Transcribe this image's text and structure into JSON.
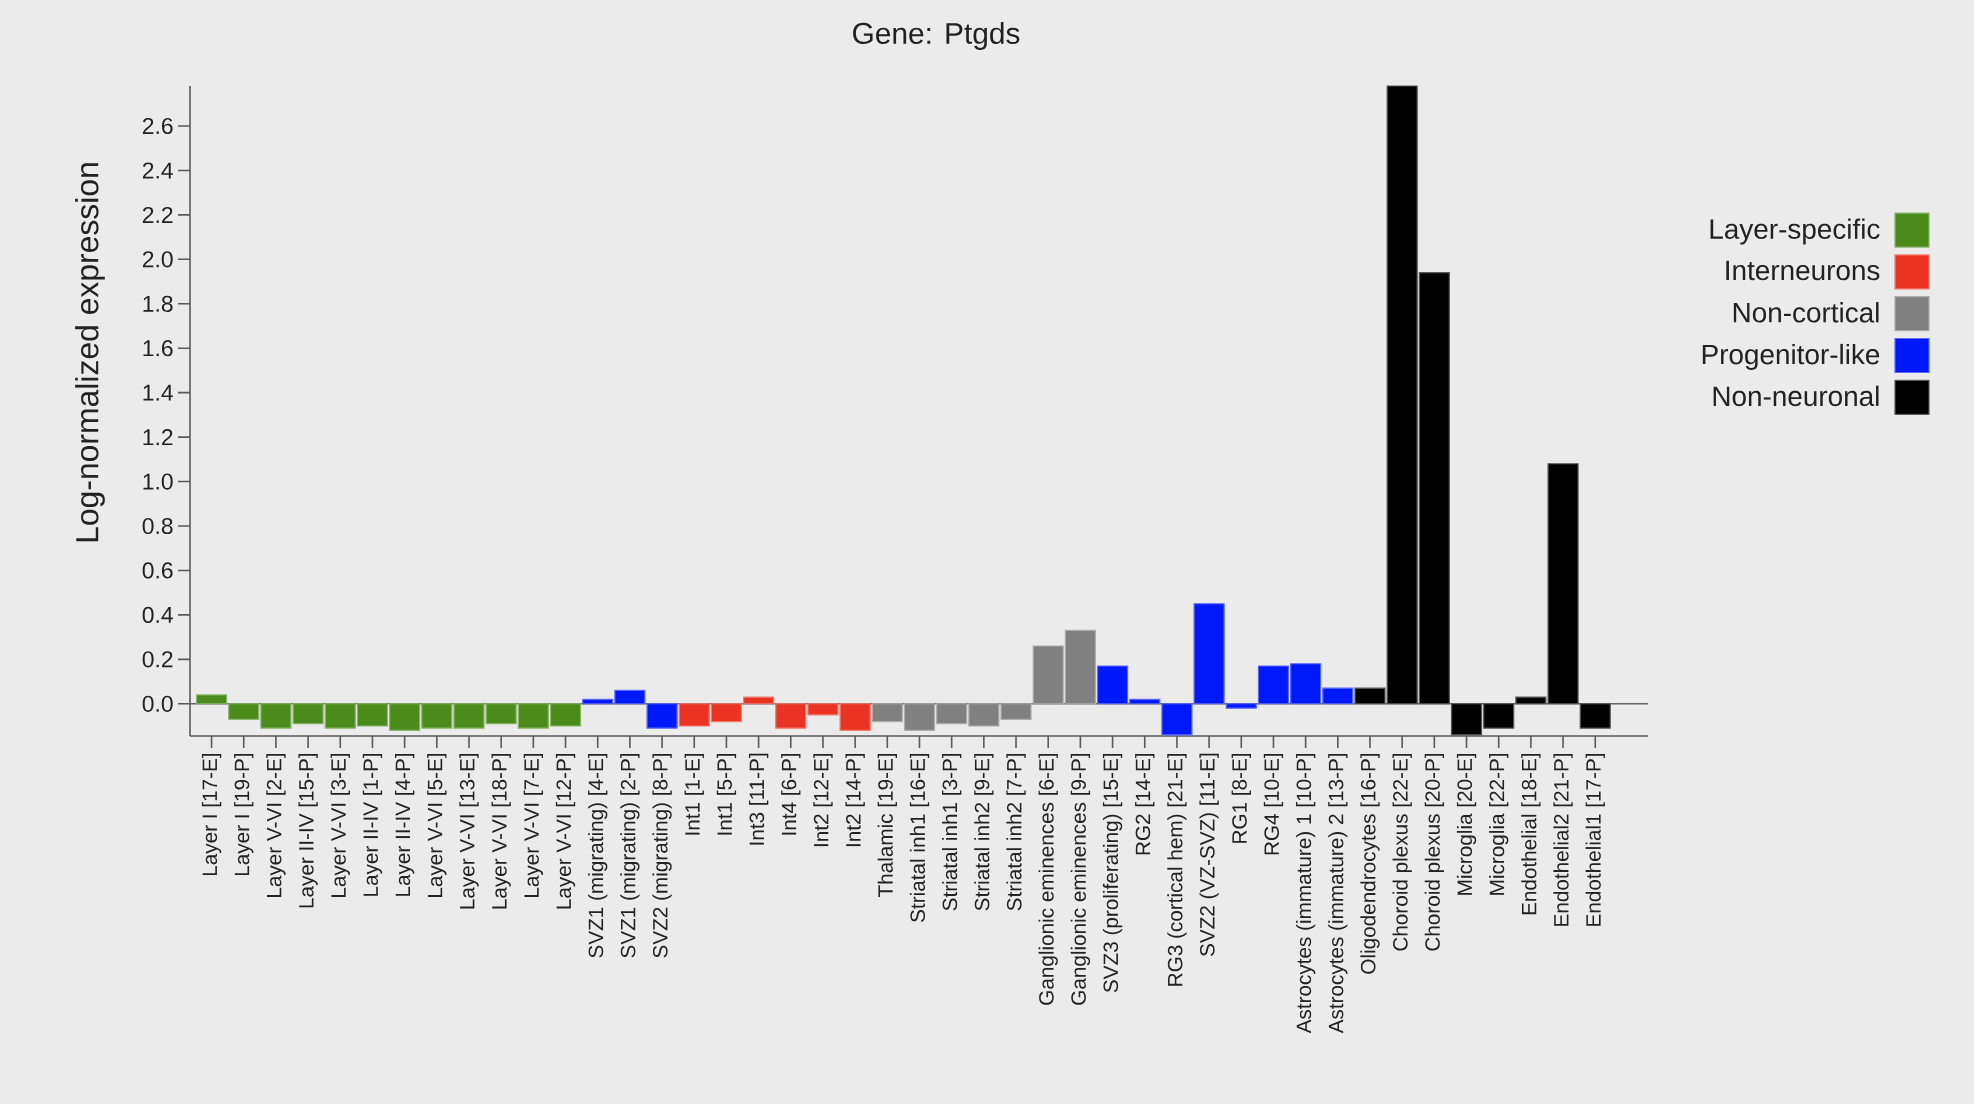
{
  "chart_data": {
    "type": "bar",
    "title": "Gene: Ptgds",
    "ylabel": "Log-normalized expression",
    "categories": [
      "Layer I [17-E]",
      "Layer I [19-P]",
      "Layer V-VI [2-E]",
      "Layer II-IV [15-P]",
      "Layer V-VI [3-E]",
      "Layer II-IV [1-P]",
      "Layer II-IV [4-P]",
      "Layer V-VI [5-E]",
      "Layer V-VI [13-E]",
      "Layer V-VI [18-P]",
      "Layer V-VI [7-E]",
      "Layer V-VI [12-P]",
      "SVZ1 (migrating) [4-E]",
      "SVZ1 (migrating) [2-P]",
      "SVZ2 (migrating) [8-P]",
      "Int1 [1-E]",
      "Int1 [5-P]",
      "Int3 [11-P]",
      "Int4 [6-P]",
      "Int2 [12-E]",
      "Int2 [14-P]",
      "Thalamic [19-E]",
      "Striatal inh1 [16-E]",
      "Striatal inh1 [3-P]",
      "Striatal inh2 [9-E]",
      "Striatal inh2 [7-P]",
      "Ganglionic eminences [6-E]",
      "Ganglionic eminences [9-P]",
      "SVZ3 (proliferating) [15-E]",
      "RG2 [14-E]",
      "RG3 (cortical hem) [21-E]",
      "SVZ2 (VZ-SVZ) [11-E]",
      "RG1 [8-E]",
      "RG4 [10-E]",
      "Astrocytes (immature) 1 [10-P]",
      "Astrocytes (immature) 2 [13-P]",
      "Oligodendrocytes [16-P]",
      "Choroid plexus [22-E]",
      "Choroid plexus [20-P]",
      "Microglia [20-E]",
      "Microglia [22-P]",
      "Endothelial [18-E]",
      "Endothelial2 [21-P]",
      "Endothelial1 [17-P]"
    ],
    "series": [
      {
        "name": "Layer-specific",
        "color": "#4b8b1c",
        "values": [
          0.04,
          -0.07,
          -0.11,
          -0.09,
          -0.11,
          -0.1,
          -0.12,
          -0.11,
          -0.11,
          -0.09,
          -0.11,
          -0.1,
          null,
          null,
          null,
          null,
          null,
          null,
          null,
          null,
          null,
          null,
          null,
          null,
          null,
          null,
          null,
          null,
          null,
          null,
          null,
          null,
          null,
          null,
          null,
          null,
          null,
          null,
          null,
          null,
          null,
          null,
          null,
          null
        ]
      },
      {
        "name": "Interneurons",
        "color": "#ea3323",
        "values": [
          null,
          null,
          null,
          null,
          null,
          null,
          null,
          null,
          null,
          null,
          null,
          null,
          null,
          null,
          null,
          -0.1,
          -0.08,
          0.03,
          -0.11,
          -0.05,
          -0.12,
          null,
          null,
          null,
          null,
          null,
          null,
          null,
          null,
          null,
          null,
          null,
          null,
          null,
          null,
          null,
          null,
          null,
          null,
          null,
          null,
          null,
          null,
          null
        ]
      },
      {
        "name": "Non-cortical",
        "color": "#808080",
        "values": [
          null,
          null,
          null,
          null,
          null,
          null,
          null,
          null,
          null,
          null,
          null,
          null,
          null,
          null,
          null,
          null,
          null,
          null,
          null,
          null,
          null,
          -0.08,
          -0.12,
          -0.09,
          -0.1,
          -0.07,
          0.26,
          0.33,
          null,
          null,
          null,
          null,
          null,
          null,
          null,
          null,
          null,
          null,
          null,
          null,
          null,
          null,
          null,
          null
        ]
      },
      {
        "name": "Progenitor-like",
        "color": "#0019fa",
        "values": [
          null,
          null,
          null,
          null,
          null,
          null,
          null,
          null,
          null,
          null,
          null,
          null,
          0.02,
          0.06,
          -0.11,
          null,
          null,
          null,
          null,
          null,
          null,
          null,
          null,
          null,
          null,
          null,
          null,
          null,
          0.17,
          0.02,
          -0.14,
          0.45,
          -0.02,
          0.17,
          0.18,
          0.07,
          null,
          null,
          null,
          null,
          null,
          null,
          null,
          null
        ]
      },
      {
        "name": "Non-neuronal",
        "color": "#000000",
        "values": [
          null,
          null,
          null,
          null,
          null,
          null,
          null,
          null,
          null,
          null,
          null,
          null,
          null,
          null,
          null,
          null,
          null,
          null,
          null,
          null,
          null,
          null,
          null,
          null,
          null,
          null,
          null,
          null,
          null,
          null,
          null,
          null,
          null,
          null,
          null,
          null,
          0.07,
          2.78,
          1.94,
          -0.14,
          -0.11,
          0.03,
          1.08,
          -0.11
        ]
      }
    ],
    "ylim": [
      -0.145,
      2.78
    ],
    "yticks": [
      {
        "value": 0,
        "label": "0.0"
      },
      0.2,
      0.4,
      0.6,
      0.8,
      {
        "value": 1,
        "label": "1.0"
      },
      1.2,
      1.4,
      1.6,
      1.8,
      {
        "value": 2,
        "label": "2.0"
      },
      2.2,
      2.4,
      2.6
    ],
    "ref_lines": [
      {
        "axis": "y",
        "value": 0,
        "color": "#666666"
      }
    ],
    "legend": "right"
  }
}
